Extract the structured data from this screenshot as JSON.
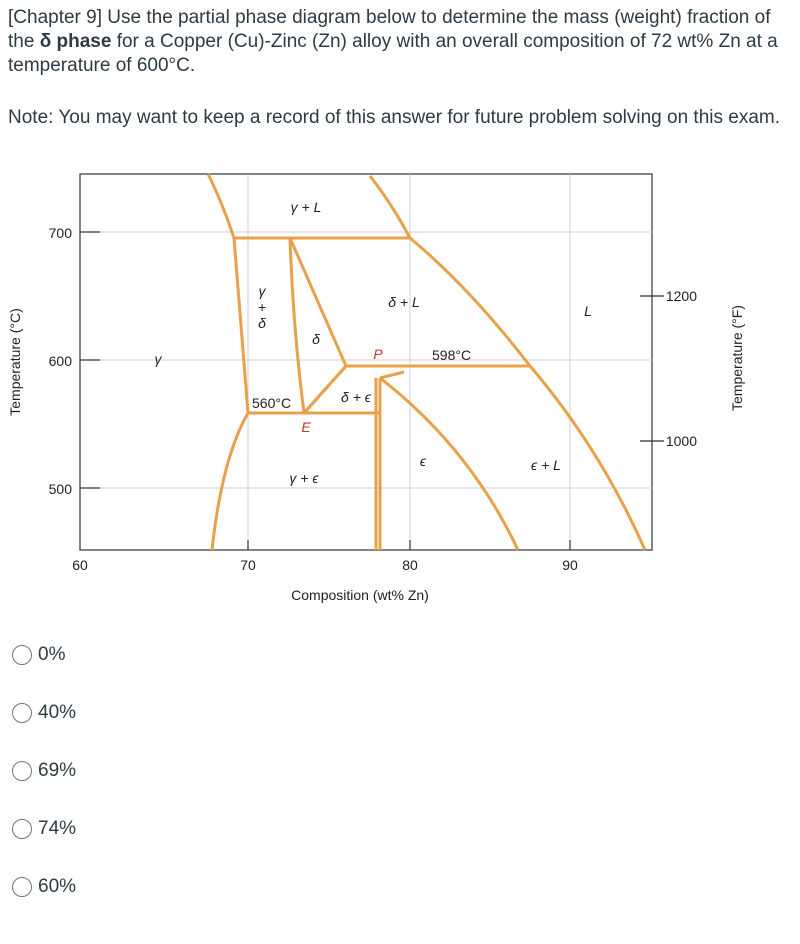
{
  "question": {
    "text_before": "[Chapter 9] Use the partial phase diagram below to determine the mass (weight) fraction of the ",
    "bold": "δ phase",
    "text_after": " for a Copper (Cu)-Zinc (Zn) alloy with an overall composition of 72 wt% Zn at a temperature of 600°C."
  },
  "note": "Note: You may want to keep a record of this answer for future problem solving on this exam.",
  "diagram": {
    "x_ticks": [
      "60",
      "70",
      "80",
      "90"
    ],
    "y_ticks_left": [
      "700",
      "600",
      "500"
    ],
    "y_ticks_right": [
      "1200",
      "1000"
    ],
    "x_axis_title": "Composition (wt% Zn)",
    "y_axis_left_title": "Temperature (°C)",
    "y_axis_right_title": "Temperature (°F)",
    "phase_labels": {
      "gamma_plus_l": "γ + L",
      "gamma_plus_delta_1": "γ",
      "gamma_plus_delta_2": "+",
      "gamma_plus_delta_3": "δ",
      "delta": "δ",
      "delta_plus_l": "δ + L",
      "l": "L",
      "gamma": "γ",
      "delta_plus_epsilon": "δ + ϵ",
      "epsilon": "ϵ",
      "epsilon_plus_l": "ϵ + L",
      "gamma_plus_epsilon": "γ + ϵ"
    },
    "point_labels": {
      "p": "P",
      "e": "E"
    },
    "temperature_labels": {
      "t598": "598°C",
      "t560": "560°C"
    },
    "line_color": "#e8a14a"
  },
  "options": [
    {
      "label": "0%"
    },
    {
      "label": "40%"
    },
    {
      "label": "69%"
    },
    {
      "label": "74%"
    },
    {
      "label": "60%"
    }
  ]
}
